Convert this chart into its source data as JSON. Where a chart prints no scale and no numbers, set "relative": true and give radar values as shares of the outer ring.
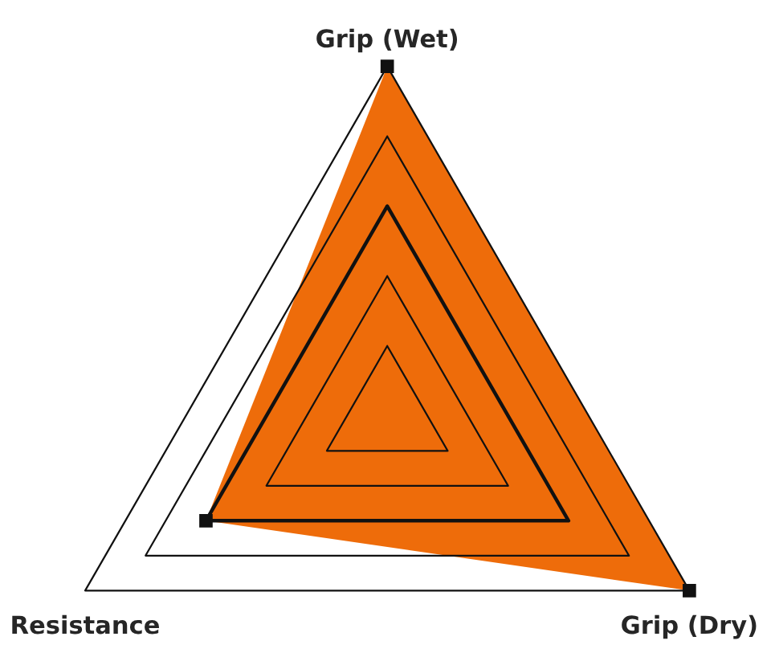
{
  "chart_data": {
    "type": "radar",
    "relative": true,
    "categories": [
      "Grip (Wet)",
      "Grip (Dry)",
      "Resistance"
    ],
    "series": [
      {
        "color": "#ee6c0a",
        "values": [
          1,
          1,
          0.6
        ]
      }
    ],
    "marker": "square",
    "grid": true
  }
}
